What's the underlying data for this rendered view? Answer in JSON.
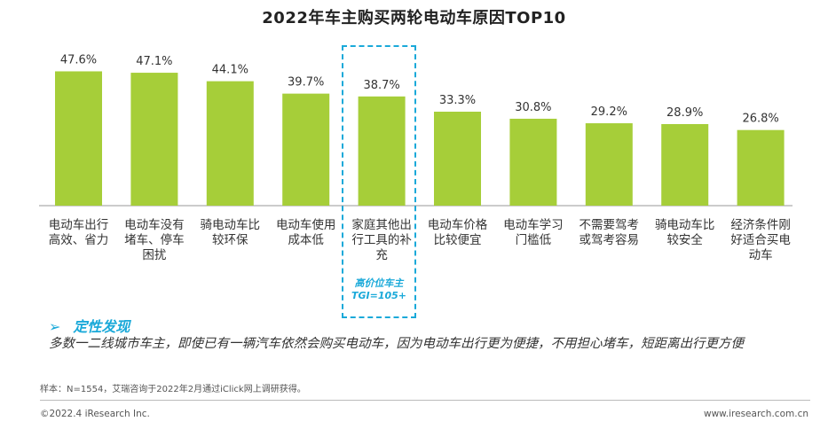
{
  "chart_data": {
    "type": "bar",
    "title": "2022年车主购买两轮电动车原因TOP10",
    "categories": [
      "电动车出行高效、省力",
      "电动车没有堵车、停车困扰",
      "骑电动车比较环保",
      "电动车使用成本低",
      "家庭其他出行工具的补充",
      "电动车价格比较便宜",
      "电动车学习门槛低",
      "不需要驾考或驾考容易",
      "骑电动车比较安全",
      "经济条件刚好适合买电动车"
    ],
    "values": [
      47.6,
      47.1,
      44.1,
      39.7,
      38.7,
      33.3,
      30.8,
      29.2,
      28.9,
      26.8
    ],
    "value_labels": [
      "47.6%",
      "47.1%",
      "44.1%",
      "39.7%",
      "38.7%",
      "33.3%",
      "30.8%",
      "29.2%",
      "28.9%",
      "26.8%"
    ],
    "ylim": [
      0,
      60
    ],
    "bar_color": "#a6ce39",
    "grid": false,
    "annotation": "高价位车主 TGI=105+",
    "annotation_color": "#1aa9d9"
  },
  "finding": {
    "arrow": "➢",
    "title": "定性发现",
    "text": "多数一二线城市车主，即使已有一辆汽车依然会购买电动车，因为电动车出行更为便捷，不用担心堵车，短距离出行更方便"
  },
  "sample_note": "样本：N=1554，艾瑞咨询于2022年2月通过iClick网上调研获得。",
  "footer": {
    "left": "©2022.4 iResearch Inc.",
    "right": "www.iresearch.com.cn"
  }
}
